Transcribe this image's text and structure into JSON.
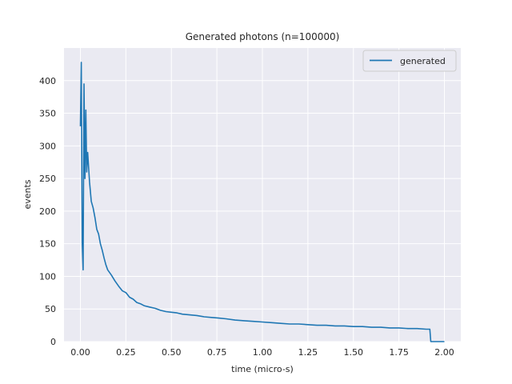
{
  "chart_data": {
    "type": "line",
    "title": "Generated photons (n=100000)",
    "xlabel": "time (micro-s)",
    "ylabel": "events",
    "xlim": [
      -0.09,
      2.09
    ],
    "ylim": [
      0,
      450
    ],
    "xticks": [
      0.0,
      0.25,
      0.5,
      0.75,
      1.0,
      1.25,
      1.5,
      1.75,
      2.0
    ],
    "xtick_labels": [
      "0.00",
      "0.25",
      "0.50",
      "0.75",
      "1.00",
      "1.25",
      "1.50",
      "1.75",
      "2.00"
    ],
    "yticks": [
      0,
      50,
      100,
      150,
      200,
      250,
      300,
      350,
      400
    ],
    "ytick_labels": [
      "0",
      "50",
      "100",
      "150",
      "200",
      "250",
      "300",
      "350",
      "400"
    ],
    "grid": true,
    "legend_position": "top-right",
    "colors": {
      "background": "#eaeaf2",
      "grid": "#ffffff",
      "series": "#1f77b4"
    },
    "series": [
      {
        "name": "generated",
        "x": [
          0.0,
          0.005,
          0.01,
          0.015,
          0.02,
          0.025,
          0.03,
          0.035,
          0.04,
          0.05,
          0.06,
          0.07,
          0.08,
          0.09,
          0.1,
          0.11,
          0.12,
          0.13,
          0.14,
          0.15,
          0.17,
          0.19,
          0.21,
          0.23,
          0.25,
          0.27,
          0.29,
          0.31,
          0.33,
          0.35,
          0.38,
          0.41,
          0.44,
          0.47,
          0.5,
          0.53,
          0.56,
          0.6,
          0.64,
          0.68,
          0.72,
          0.76,
          0.8,
          0.85,
          0.9,
          0.95,
          1.0,
          1.05,
          1.1,
          1.15,
          1.2,
          1.25,
          1.3,
          1.35,
          1.4,
          1.45,
          1.5,
          1.55,
          1.6,
          1.65,
          1.7,
          1.75,
          1.8,
          1.85,
          1.9,
          1.92,
          1.925,
          1.95,
          2.0
        ],
        "y": [
          330,
          428,
          150,
          110,
          395,
          250,
          355,
          260,
          290,
          245,
          215,
          205,
          190,
          172,
          165,
          150,
          140,
          128,
          118,
          110,
          102,
          93,
          85,
          78,
          75,
          68,
          65,
          60,
          58,
          55,
          53,
          51,
          48,
          46,
          45,
          44,
          42,
          41,
          40,
          38,
          37,
          36,
          35,
          33,
          32,
          31,
          30,
          29,
          28,
          27,
          27,
          26,
          25,
          25,
          24,
          24,
          23,
          23,
          22,
          22,
          21,
          21,
          20,
          20,
          19,
          19,
          0,
          0,
          0
        ]
      }
    ]
  }
}
